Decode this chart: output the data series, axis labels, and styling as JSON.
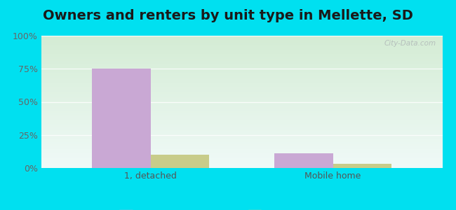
{
  "title": "Owners and renters by unit type in Mellette, SD",
  "categories": [
    "1, detached",
    "Mobile home"
  ],
  "owner_values": [
    75,
    11
  ],
  "renter_values": [
    10,
    3
  ],
  "owner_color": "#c9a8d4",
  "renter_color": "#c8cc8a",
  "ylim": [
    0,
    100
  ],
  "yticks": [
    0,
    25,
    50,
    75,
    100
  ],
  "ytick_labels": [
    "0%",
    "25%",
    "50%",
    "75%",
    "100%"
  ],
  "outer_bg": "#00e0f0",
  "title_fontsize": 14,
  "bar_width": 0.32,
  "watermark": "City-Data.com",
  "grad_top": "#d4ecd4",
  "grad_bottom": "#f0faf8"
}
